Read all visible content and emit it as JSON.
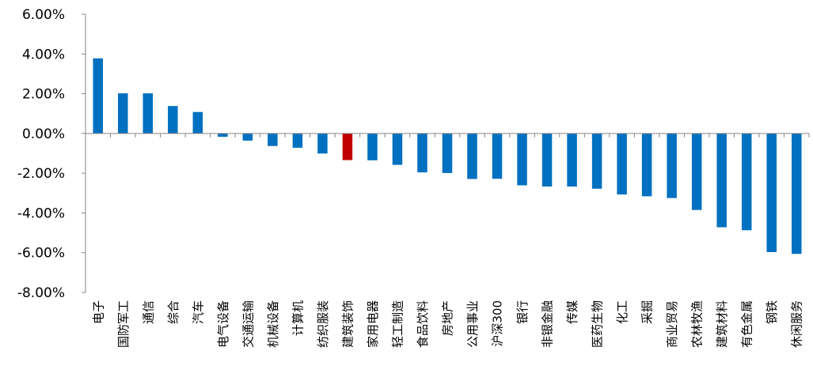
{
  "chart_data": {
    "type": "bar",
    "title": "",
    "xlabel": "",
    "ylabel": "",
    "ylim": [
      -8,
      6
    ],
    "yticks": [
      "6.00%",
      "4.00%",
      "2.00%",
      "0.00%",
      "-2.00%",
      "-4.00%",
      "-6.00%",
      "-8.00%"
    ],
    "grid": false,
    "legend": "none",
    "colors": {
      "default": "#0070C0",
      "highlight": "#C00000"
    },
    "highlight_index": 10,
    "categories": [
      "电子",
      "国防军工",
      "通信",
      "综合",
      "汽车",
      "电气设备",
      "交通运输",
      "机械设备",
      "计算机",
      "纺织服装",
      "建筑装饰",
      "家用电器",
      "轻工制造",
      "食品饮料",
      "房地产",
      "公用事业",
      "沪深300",
      "银行",
      "非银金融",
      "传媒",
      "医药生物",
      "化工",
      "采掘",
      "商业贸易",
      "农林牧渔",
      "建筑材料",
      "有色金属",
      "钢铁",
      "休闲服务"
    ],
    "values": [
      3.78,
      2.02,
      2.02,
      1.38,
      1.08,
      -0.17,
      -0.36,
      -0.63,
      -0.72,
      -1.01,
      -1.34,
      -1.35,
      -1.58,
      -1.96,
      -1.99,
      -2.29,
      -2.28,
      -2.61,
      -2.67,
      -2.67,
      -2.78,
      -3.07,
      -3.16,
      -3.25,
      -3.85,
      -4.72,
      -4.87,
      -5.97,
      -6.06
    ]
  }
}
